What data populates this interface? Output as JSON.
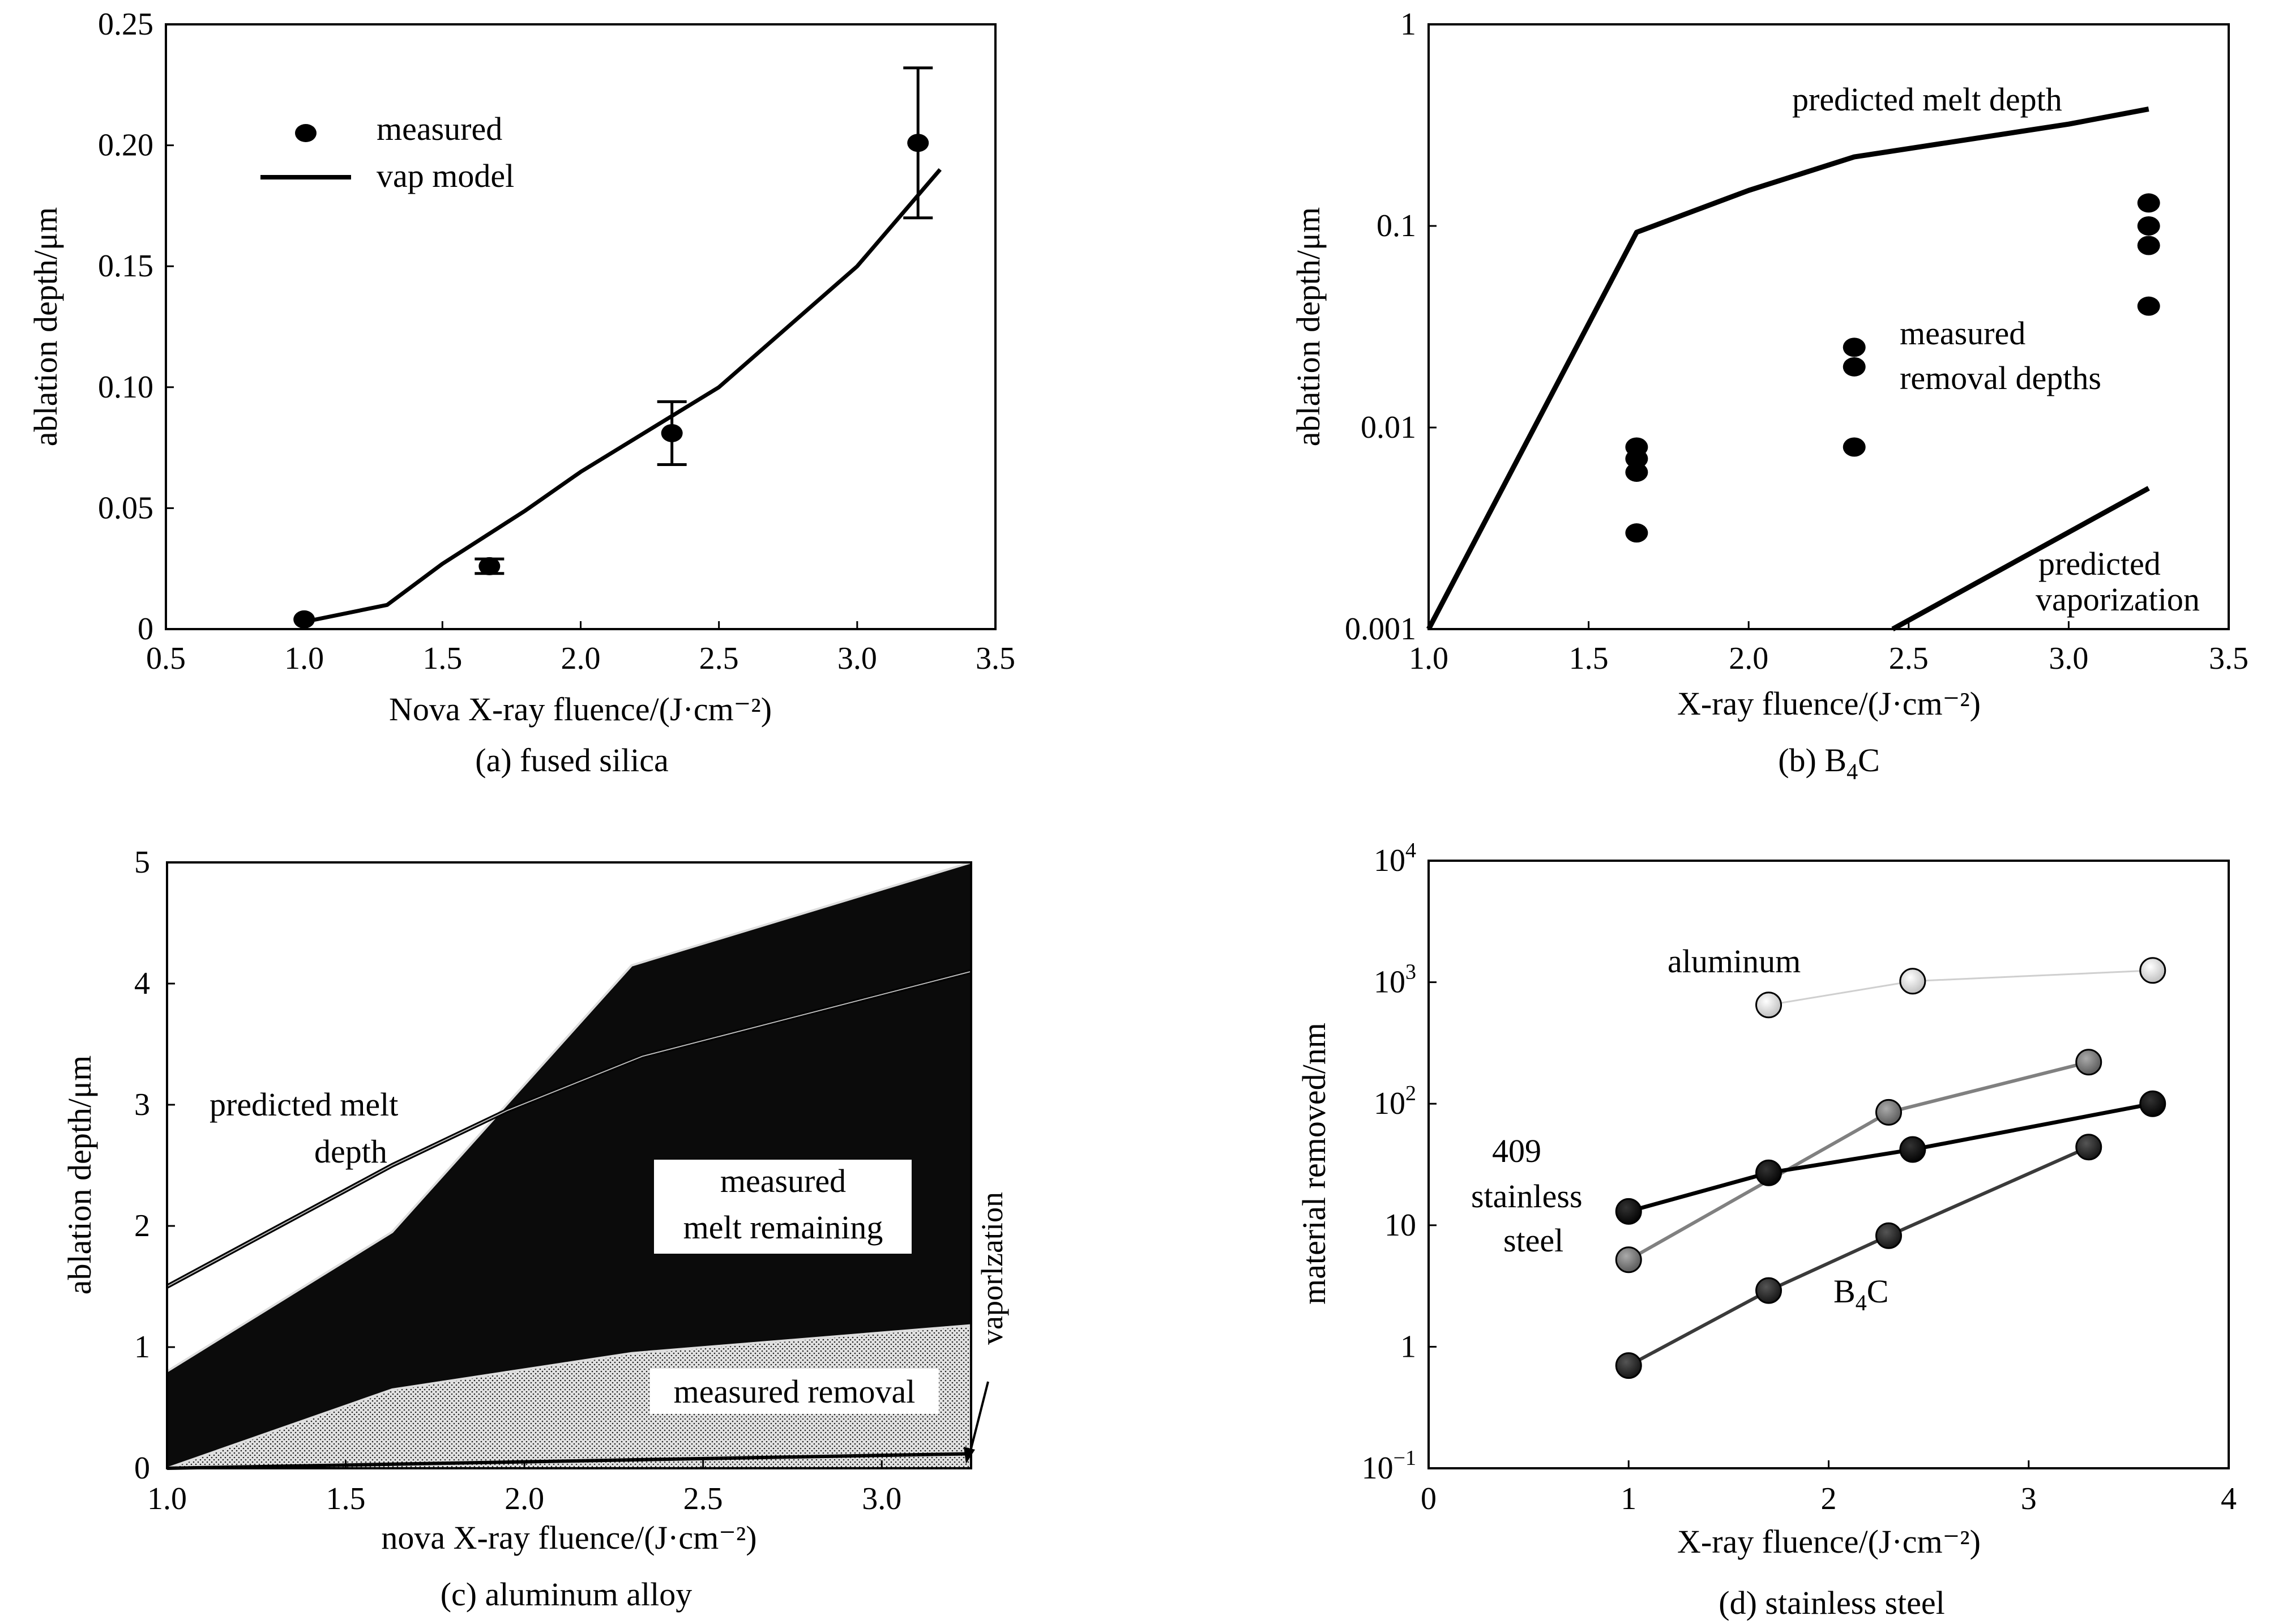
{
  "figure": {
    "panels": [
      {
        "id": "a",
        "caption": "(a) fused silica",
        "chart_data": {
          "type": "line",
          "xlabel": "Nova X-ray fluence/(J·cm⁻²)",
          "ylabel": "ablation depth/μm",
          "xlim": [
            0.5,
            3.5
          ],
          "ylim": [
            0,
            0.25
          ],
          "xticks": [
            "0.5",
            "1.0",
            "1.5",
            "2.0",
            "2.5",
            "3.0",
            "3.5"
          ],
          "yticks": [
            "0",
            "0.05",
            "0.10",
            "0.15",
            "0.20",
            "0.25"
          ],
          "legend": [
            "measured",
            "vap model"
          ],
          "legend_position": "top-left",
          "series": [
            {
              "name": "measured",
              "kind": "scatter-errorbar",
              "x": [
                1.0,
                1.67,
                2.33,
                3.22
              ],
              "y": [
                0.004,
                0.026,
                0.081,
                0.201
              ],
              "err_low": [
                0.004,
                0.023,
                0.068,
                0.17
              ],
              "err_high": [
                0.004,
                0.029,
                0.094,
                0.232
              ]
            },
            {
              "name": "vap model",
              "kind": "line",
              "x": [
                1.0,
                1.3,
                1.5,
                1.8,
                2.0,
                2.3,
                2.5,
                2.8,
                3.0,
                3.3
              ],
              "y": [
                0.003,
                0.01,
                0.027,
                0.049,
                0.065,
                0.086,
                0.1,
                0.13,
                0.15,
                0.19
              ]
            }
          ]
        }
      },
      {
        "id": "b",
        "caption_main": "(b) B",
        "caption_sub": "4",
        "caption_tail": "C",
        "chart_data": {
          "type": "line",
          "xlabel": "X-ray fluence/(J·cm⁻²)",
          "ylabel": "ablation depth/μm",
          "xlim": [
            1.0,
            3.5
          ],
          "ylim": [
            0.001,
            1
          ],
          "yscale": "log",
          "xticks": [
            "1.0",
            "1.5",
            "2.0",
            "2.5",
            "3.0",
            "3.5"
          ],
          "yticks": [
            "0.001",
            "0.01",
            "0.1",
            "1"
          ],
          "annotations": [
            "predicted melt depth",
            "measured",
            "removal depths",
            "predicted",
            "vaporization"
          ],
          "series": [
            {
              "kind": "line",
              "label": "predicted melt depth",
              "x": [
                1.0,
                1.65,
                2.0,
                2.33,
                3.0,
                3.25
              ],
              "y": [
                0.001,
                0.093,
                0.15,
                0.22,
                0.32,
                0.38
              ]
            },
            {
              "kind": "scatter",
              "label": "measured removal depths",
              "x": [
                1.65,
                1.65,
                1.65,
                1.65,
                2.33,
                2.33,
                2.33,
                3.25,
                3.25,
                3.25,
                3.25
              ],
              "y": [
                0.008,
                0.007,
                0.006,
                0.003,
                0.025,
                0.02,
                0.008,
                0.13,
                0.1,
                0.08,
                0.04
              ]
            },
            {
              "kind": "line",
              "label": "predicted vaporization",
              "x": [
                2.45,
                3.25
              ],
              "y": [
                0.001,
                0.005
              ]
            }
          ]
        }
      },
      {
        "id": "c",
        "caption": "(c) aluminum alloy",
        "chart_data": {
          "type": "area",
          "xlabel": "nova X-ray fluence/(J·cm⁻²)",
          "ylabel": "ablation depth/μm",
          "xlim": [
            1.0,
            3.25
          ],
          "ylim": [
            0,
            5
          ],
          "xticks": [
            "1.0",
            "1.5",
            "2.0",
            "2.5",
            "3.0"
          ],
          "yticks": [
            "0",
            "1",
            "2",
            "3",
            "4",
            "5"
          ],
          "annotations": [
            "predicted melt",
            "depth",
            "measured",
            "melt remaining",
            "measured removal",
            "vaporlzation"
          ],
          "series": [
            {
              "kind": "line",
              "label": "predicted melt depth",
              "x": [
                1.0,
                1.63,
                1.95,
                2.33,
                3.25
              ],
              "y": [
                1.5,
                2.5,
                2.95,
                3.4,
                4.1
              ]
            },
            {
              "kind": "area-top",
              "label": "measured melt remaining",
              "x": [
                1.0,
                1.63,
                2.3,
                3.25
              ],
              "y": [
                0.8,
                1.95,
                4.15,
                5.0
              ]
            },
            {
              "kind": "area-top",
              "label": "measured removal",
              "x": [
                1.0,
                1.63,
                2.3,
                3.25
              ],
              "y": [
                0.0,
                0.65,
                0.95,
                1.18
              ]
            },
            {
              "kind": "line",
              "label": "vaporlzation",
              "x": [
                1.0,
                3.25
              ],
              "y": [
                0.0,
                0.12
              ]
            }
          ]
        }
      },
      {
        "id": "d",
        "caption": "(d) stainless steel",
        "chart_data": {
          "type": "line",
          "xlabel": "X-ray fluence/(J·cm⁻²)",
          "ylabel": "material removed/nm",
          "xlim": [
            0,
            4
          ],
          "ylim": [
            0.1,
            10000
          ],
          "yscale": "log",
          "xticks": [
            "0",
            "1",
            "2",
            "3",
            "4"
          ],
          "yticks": [
            {
              "base": "10",
              "exp": "−1"
            },
            {
              "base": "1",
              "exp": ""
            },
            {
              "base": "10",
              "exp": ""
            },
            {
              "base": "10",
              "exp": "2"
            },
            {
              "base": "10",
              "exp": "3"
            },
            {
              "base": "10",
              "exp": "4"
            }
          ],
          "labels": [
            "aluminum",
            "409",
            "stainless",
            "steel",
            "B",
            "4",
            "C"
          ],
          "series": [
            {
              "name": "aluminum",
              "color": "#d9d9d9",
              "line_color": "#cfcfcf",
              "x": [
                1.7,
                2.42,
                3.62
              ],
              "y": [
                650,
                1020,
                1250
              ]
            },
            {
              "name": "gray-series",
              "color": "#7a7a7a",
              "line_color": "#808080",
              "x": [
                1.0,
                2.3,
                3.3
              ],
              "y": [
                5.2,
                85,
                220
              ]
            },
            {
              "name": "409 stainless steel",
              "color": "#0a0a0a",
              "line_color": "#000000",
              "x": [
                1.0,
                1.7,
                2.42,
                3.62
              ],
              "y": [
                13,
                27,
                42,
                100
              ]
            },
            {
              "name": "B4C",
              "color": "#3a3a3a",
              "line_color": "#3a3a3a",
              "x": [
                1.0,
                1.7,
                2.3,
                3.3
              ],
              "y": [
                0.7,
                2.9,
                8.2,
                44
              ]
            }
          ]
        }
      }
    ]
  }
}
